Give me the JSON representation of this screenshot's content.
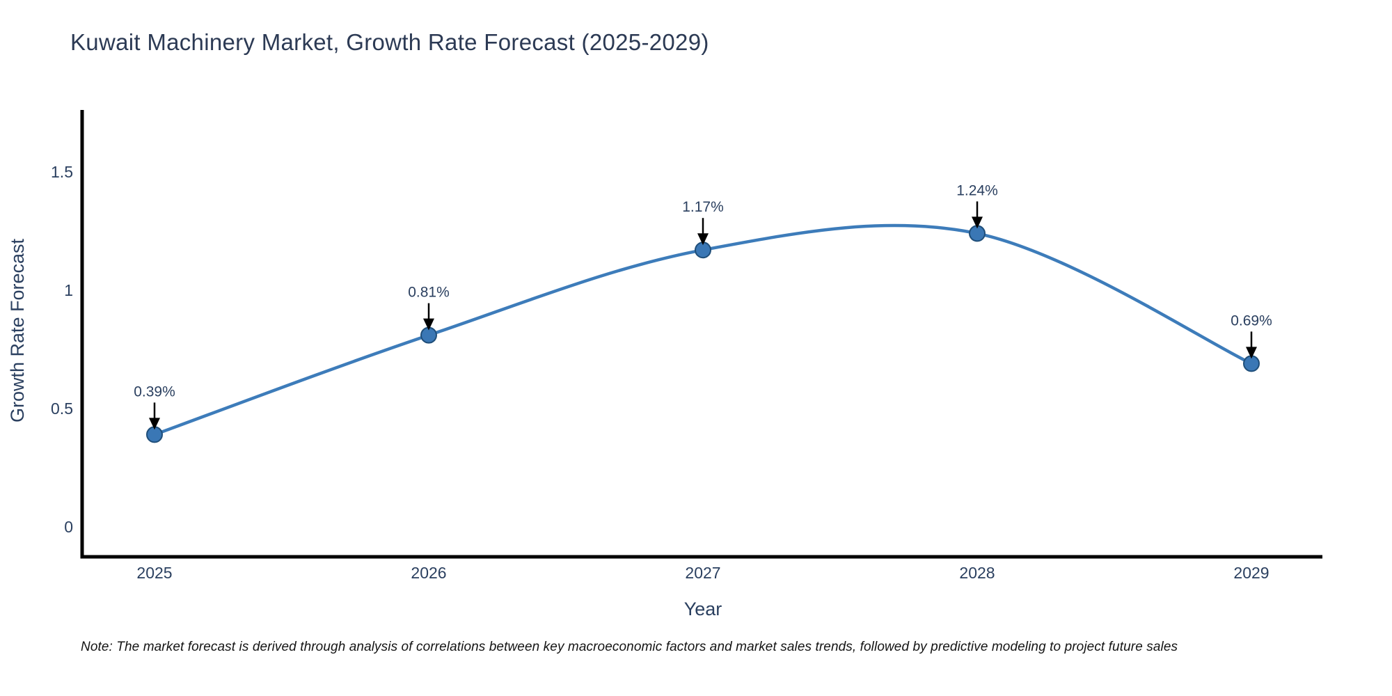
{
  "note": "Note: The market forecast is derived through analysis of correlations between key macroeconomic factors and market sales trends, followed by predictive modeling to project future sales",
  "chart_data": {
    "type": "line",
    "title": "Kuwait Machinery Market, Growth Rate Forecast (2025-2029)",
    "xlabel": "Year",
    "ylabel": "Growth Rate Forecast",
    "x": [
      "2025",
      "2026",
      "2027",
      "2028",
      "2029"
    ],
    "series": [
      {
        "name": "Growth Rate Forecast",
        "values": [
          0.39,
          0.81,
          1.17,
          1.24,
          0.69
        ]
      }
    ],
    "point_labels": [
      "0.39%",
      "0.81%",
      "1.17%",
      "1.24%",
      "0.69%"
    ],
    "yticks": [
      0,
      0.5,
      1,
      1.5
    ],
    "ytick_labels": [
      "0",
      "0.5",
      "1",
      "1.5"
    ],
    "ylim": [
      -0.13,
      1.77
    ],
    "xlim_years": [
      2025,
      2029
    ],
    "line_shape": "spline",
    "grid": false,
    "legend": "none",
    "colors": {
      "line": "#3d7cba",
      "marker": "#3a77b5",
      "marker_edge": "#1f4e79",
      "arrow": "#000000",
      "axis": "#000000",
      "text": "#2a3f5f",
      "title": "#2c3a54",
      "note": "#141414",
      "background": "#ffffff"
    }
  }
}
